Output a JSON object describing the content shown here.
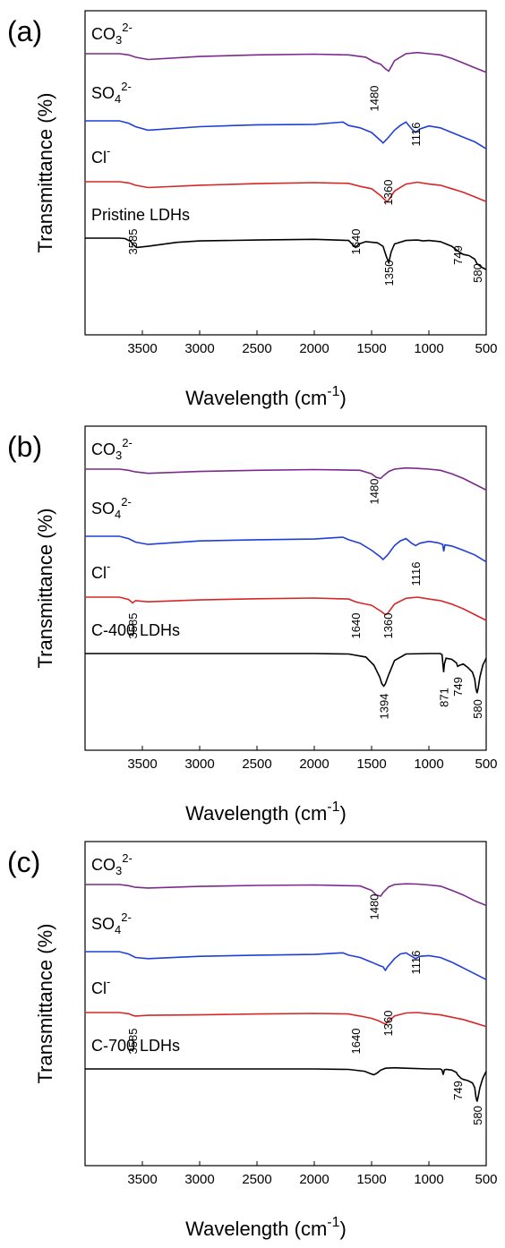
{
  "chart_data": [
    {
      "type": "line",
      "panel_label": "(a)",
      "xlabel": "Wavelength",
      "xlabel_unit": "cm",
      "xlabel_unit_sup": "-1",
      "ylabel": "Transmittance (%)",
      "xlim": [
        4000,
        500
      ],
      "x_ticks": [
        3500,
        3000,
        2500,
        2000,
        1500,
        1000,
        500
      ],
      "series": [
        {
          "name": "CO32-",
          "label_base": "CO",
          "label_sub": "3",
          "label_sup": "2-",
          "color": "#7b2a8c",
          "x": [
            3700,
            3620,
            3560,
            3450,
            3000,
            2500,
            2000,
            1700,
            1550,
            1480,
            1420,
            1380,
            1350,
            1300,
            1200,
            1100,
            1000,
            900,
            800,
            700,
            600,
            500
          ],
          "y": [
            100,
            99.5,
            98.5,
            97.5,
            98.8,
            99.5,
            99.8,
            99.5,
            98.5,
            96.5,
            95.5,
            93.5,
            92.5,
            97,
            100,
            100.5,
            100,
            99.5,
            98,
            96,
            94,
            92
          ]
        },
        {
          "name": "SO42-",
          "label_base": "SO",
          "label_sub": "4",
          "label_sup": "2-",
          "color": "#1f3fd6",
          "x": [
            3700,
            3620,
            3560,
            3450,
            3000,
            2500,
            2000,
            1750,
            1700,
            1600,
            1500,
            1420,
            1400,
            1360,
            1300,
            1250,
            1200,
            1150,
            1116,
            1080,
            1000,
            900,
            800,
            700,
            600,
            500
          ],
          "y": [
            100,
            99,
            97.5,
            96,
            97.5,
            98.3,
            98.5,
            99.5,
            98,
            97,
            95,
            91.5,
            90.5,
            92.5,
            96,
            98,
            99.5,
            96.5,
            95,
            96.5,
            97.8,
            97,
            95,
            93,
            91,
            88
          ]
        },
        {
          "name": "Cl-",
          "label_base": "Cl",
          "label_sub": "",
          "label_sup": "-",
          "color": "#d62728",
          "x": [
            3700,
            3620,
            3560,
            3450,
            3000,
            2500,
            2000,
            1700,
            1600,
            1500,
            1420,
            1380,
            1360,
            1300,
            1200,
            1100,
            1000,
            900,
            800,
            700,
            600,
            500
          ],
          "y": [
            100,
            99.5,
            98.5,
            97.5,
            98.5,
            99.2,
            99.6,
            99.3,
            98,
            97,
            94,
            92,
            91.5,
            96,
            99,
            99.8,
            99,
            98.5,
            97,
            95.5,
            93.5,
            91.5
          ]
        },
        {
          "name": "Pristine LDHs",
          "label_base": "Pristine LDHs",
          "label_sub": "",
          "label_sup": "",
          "color": "#000000",
          "x": [
            3700,
            3650,
            3600,
            3585,
            3550,
            3450,
            3200,
            3000,
            2500,
            2000,
            1700,
            1660,
            1640,
            1610,
            1550,
            1450,
            1400,
            1370,
            1350,
            1330,
            1300,
            1200,
            1100,
            1050,
            1000,
            900,
            800,
            749,
            700,
            650,
            600,
            580,
            540,
            500
          ],
          "y": [
            100,
            99.8,
            98.5,
            97.5,
            96,
            96.5,
            98.2,
            98.8,
            99.2,
            99.5,
            99,
            97,
            96,
            97.5,
            98.5,
            98,
            96.5,
            92,
            89.5,
            94,
            97.5,
            99,
            99.2,
            98.8,
            99,
            98.5,
            96.5,
            94.5,
            93,
            92.5,
            91,
            89,
            87.5,
            86.5
          ]
        }
      ],
      "annotations": [
        {
          "text": "1480",
          "x": 1480
        },
        {
          "text": "1116",
          "x": 1116
        },
        {
          "text": "1360",
          "x": 1360
        },
        {
          "text": "3585",
          "x": 3585
        },
        {
          "text": "1640",
          "x": 1640
        },
        {
          "text": "1350",
          "x": 1350
        },
        {
          "text": "749",
          "x": 749
        },
        {
          "text": "580",
          "x": 580
        }
      ]
    },
    {
      "type": "line",
      "panel_label": "(b)",
      "xlabel": "Wavelength",
      "xlabel_unit": "cm",
      "xlabel_unit_sup": "-1",
      "ylabel": "Transmittance (%)",
      "xlim": [
        4000,
        500
      ],
      "x_ticks": [
        3500,
        3000,
        2500,
        2000,
        1500,
        1000,
        500
      ],
      "series": [
        {
          "name": "CO32-",
          "label_base": "CO",
          "label_sub": "3",
          "label_sup": "2-",
          "color": "#7b2a8c",
          "x": [
            3700,
            3620,
            3560,
            3450,
            3000,
            2500,
            2000,
            1600,
            1500,
            1460,
            1420,
            1400,
            1350,
            1300,
            1200,
            1100,
            1000,
            900,
            800,
            700,
            600,
            500
          ],
          "y": [
            100,
            99.5,
            98.8,
            98.2,
            99,
            99.5,
            99.8,
            99.5,
            98,
            96.5,
            96,
            97,
            99,
            100,
            100.5,
            100.3,
            100,
            99.5,
            98,
            96,
            93.5,
            91
          ]
        },
        {
          "name": "SO42-",
          "label_base": "SO",
          "label_sub": "4",
          "label_sup": "2-",
          "color": "#1f3fd6",
          "x": [
            3700,
            3620,
            3560,
            3450,
            3000,
            2500,
            2000,
            1750,
            1700,
            1600,
            1500,
            1420,
            1400,
            1360,
            1300,
            1250,
            1200,
            1150,
            1116,
            1080,
            1000,
            920,
            880,
            870,
            860,
            800,
            700,
            600,
            500
          ],
          "y": [
            100,
            99,
            97.5,
            96.5,
            98,
            98.5,
            98.8,
            99.6,
            98.5,
            97,
            94,
            91,
            90,
            92,
            96,
            98,
            99,
            97,
            96,
            97,
            97.8,
            97.2,
            96.5,
            93.5,
            96.3,
            95.8,
            94,
            92,
            89
          ]
        },
        {
          "name": "Cl-",
          "label_base": "Cl",
          "label_sub": "",
          "label_sup": "-",
          "color": "#d62728",
          "x": [
            3700,
            3620,
            3585,
            3560,
            3450,
            3000,
            2500,
            2000,
            1700,
            1640,
            1600,
            1500,
            1420,
            1380,
            1360,
            1300,
            1200,
            1100,
            1000,
            900,
            800,
            700,
            600,
            500
          ],
          "y": [
            100,
            99,
            97.5,
            98.5,
            98,
            98.8,
            99.3,
            99.6,
            99.2,
            98,
            97.5,
            96.5,
            94,
            92.5,
            93,
            97,
            99.5,
            100,
            99.2,
            98.5,
            97,
            95,
            92.5,
            90
          ]
        },
        {
          "name": "C-400 LDHs",
          "label_base": "C-400 LDHs",
          "label_sub": "",
          "label_sup": "",
          "color": "#000000",
          "x": [
            3700,
            3500,
            3000,
            2500,
            2000,
            1700,
            1550,
            1480,
            1430,
            1410,
            1394,
            1380,
            1350,
            1300,
            1200,
            1000,
            900,
            885,
            875,
            871,
            865,
            850,
            800,
            760,
            749,
            730,
            700,
            660,
            620,
            600,
            590,
            580,
            570,
            555,
            530,
            500
          ],
          "y": [
            100,
            100,
            100,
            100,
            100,
            99.8,
            98.5,
            95,
            90,
            87,
            86,
            87,
            91,
            97,
            99.8,
            100,
            100,
            99.5,
            94,
            92,
            95.5,
            98,
            97.5,
            96,
            94.5,
            95,
            95.5,
            94,
            92,
            89,
            85,
            83,
            85,
            90,
            95,
            98
          ]
        }
      ],
      "annotations": [
        {
          "text": "1480",
          "x": 1480
        },
        {
          "text": "1116",
          "x": 1116
        },
        {
          "text": "3585",
          "x": 3585
        },
        {
          "text": "1640",
          "x": 1640
        },
        {
          "text": "1360",
          "x": 1360
        },
        {
          "text": "1394",
          "x": 1394
        },
        {
          "text": "871",
          "x": 871
        },
        {
          "text": "749",
          "x": 749
        },
        {
          "text": "580",
          "x": 580
        }
      ]
    },
    {
      "type": "line",
      "panel_label": "(c)",
      "xlabel": "Wavelength",
      "xlabel_unit": "cm",
      "xlabel_unit_sup": "-1",
      "ylabel": "Transmittance (%)",
      "xlim": [
        4000,
        500
      ],
      "x_ticks": [
        3500,
        3000,
        2500,
        2000,
        1500,
        1000,
        500
      ],
      "series": [
        {
          "name": "CO32-",
          "label_base": "CO",
          "label_sub": "3",
          "label_sup": "2-",
          "color": "#7b2a8c",
          "x": [
            3700,
            3620,
            3560,
            3450,
            3000,
            2500,
            2000,
            1600,
            1500,
            1460,
            1420,
            1400,
            1350,
            1300,
            1200,
            1100,
            1000,
            900,
            800,
            700,
            600,
            500
          ],
          "y": [
            100,
            99.5,
            98.8,
            98.5,
            99.2,
            99.6,
            99.8,
            99.4,
            97.5,
            95.5,
            95,
            96.5,
            99,
            100,
            100.3,
            100.2,
            99.8,
            99.3,
            97.5,
            95.5,
            93,
            91
          ]
        },
        {
          "name": "SO42-",
          "label_base": "SO",
          "label_sub": "4",
          "label_sup": "2-",
          "color": "#1f3fd6",
          "x": [
            3700,
            3620,
            3560,
            3450,
            3000,
            2500,
            2000,
            1750,
            1700,
            1600,
            1500,
            1430,
            1400,
            1380,
            1360,
            1300,
            1250,
            1200,
            1150,
            1116,
            1080,
            1000,
            900,
            800,
            700,
            600,
            500
          ],
          "y": [
            100,
            99,
            97.5,
            97,
            98,
            98.5,
            98.8,
            99.5,
            98.5,
            97.5,
            95.5,
            94,
            93.5,
            92,
            93.5,
            97,
            99,
            99.5,
            98,
            97,
            98,
            98.3,
            97.5,
            95.5,
            93,
            90.5,
            88
          ]
        },
        {
          "name": "Cl-",
          "label_base": "Cl",
          "label_sub": "",
          "label_sup": "-",
          "color": "#d62728",
          "x": [
            3700,
            3620,
            3585,
            3560,
            3450,
            3000,
            2500,
            2000,
            1700,
            1640,
            1600,
            1500,
            1440,
            1400,
            1380,
            1360,
            1300,
            1200,
            1100,
            1000,
            900,
            800,
            700,
            600,
            500
          ],
          "y": [
            100,
            99.5,
            98.8,
            98.5,
            98.8,
            99,
            99.4,
            99.6,
            99.4,
            98.8,
            98.5,
            97.5,
            96.5,
            95.5,
            95,
            96,
            98.5,
            99.8,
            100,
            99.5,
            99,
            98,
            97,
            95.5,
            94
          ]
        },
        {
          "name": "C-700 LDHs",
          "label_base": "C-700 LDHs",
          "label_sub": "",
          "label_sup": "",
          "color": "#000000",
          "x": [
            3700,
            3500,
            3000,
            2500,
            2000,
            1700,
            1560,
            1500,
            1480,
            1450,
            1420,
            1380,
            1300,
            1200,
            1000,
            900,
            885,
            875,
            865,
            850,
            800,
            760,
            749,
            720,
            700,
            660,
            620,
            600,
            590,
            580,
            570,
            555,
            530,
            500
          ],
          "y": [
            100,
            100,
            100,
            100,
            100,
            99.8,
            99,
            97.8,
            97.5,
            98.3,
            99.5,
            100.3,
            100.5,
            100.3,
            100,
            100,
            99.5,
            97.5,
            99.6,
            99.8,
            99.5,
            98.5,
            97.5,
            96,
            95.5,
            95,
            94,
            92,
            88,
            86,
            88,
            92,
            96,
            99
          ]
        }
      ],
      "annotations": [
        {
          "text": "1480",
          "x": 1480
        },
        {
          "text": "1116",
          "x": 1116
        },
        {
          "text": "3585",
          "x": 3585
        },
        {
          "text": "1640",
          "x": 1640
        },
        {
          "text": "1360",
          "x": 1360
        },
        {
          "text": "749",
          "x": 749
        },
        {
          "text": "580",
          "x": 580
        }
      ]
    }
  ]
}
